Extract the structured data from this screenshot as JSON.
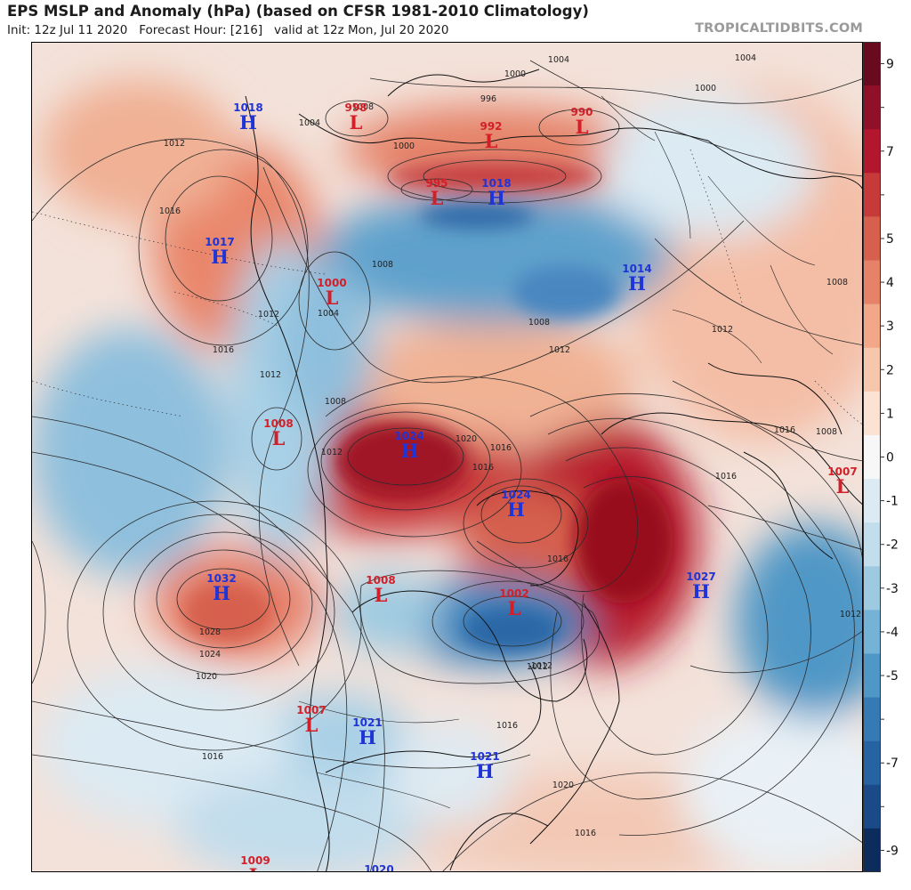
{
  "header": {
    "title": "EPS MSLP and Anomaly (hPa) (based on CFSR 1981-2010 Climatology)",
    "subtitle": "Init: 12z Jul 11 2020   Forecast Hour: [216]   valid at 12z Mon, Jul 20 2020",
    "brand": "TROPICALTIDBITS.COM"
  },
  "colors": {
    "high_label": "#1f34d6",
    "low_label": "#d21f28",
    "strong_positive": "#b2132b",
    "strong_negative": "#1f5f9e",
    "neutral": "#f7f7f7"
  },
  "colorbar": {
    "ticks": [
      "9",
      "8",
      "7",
      "6",
      "5",
      "4",
      "3",
      "2",
      "1",
      "0",
      "-1",
      "-2",
      "-3",
      "-4",
      "-5",
      "-6",
      "-7",
      "-8",
      "-9"
    ],
    "labeled": [
      "9",
      "7",
      "5",
      "4",
      "3",
      "2",
      "1",
      "0",
      "-1",
      "-2",
      "-3",
      "-4",
      "-5",
      "-7",
      "-9"
    ],
    "colors": [
      "#6a0a1f",
      "#8f1028",
      "#b2172d",
      "#c73a3a",
      "#d6604d",
      "#e58268",
      "#f1a788",
      "#f7c7ad",
      "#fbe2d3",
      "#f7f7f7",
      "#dceaf3",
      "#c2ddec",
      "#9ecae1",
      "#74b3d5",
      "#4f97c6",
      "#367ab5",
      "#2563a3",
      "#1a4a87",
      "#0d2c5e"
    ]
  },
  "pressure_centers": [
    {
      "type": "H",
      "value": "1018"
    },
    {
      "type": "L",
      "value": "998"
    },
    {
      "type": "L",
      "value": "992"
    },
    {
      "type": "L",
      "value": "990"
    },
    {
      "type": "L",
      "value": "995"
    },
    {
      "type": "H",
      "value": "1018"
    },
    {
      "type": "H",
      "value": "1017"
    },
    {
      "type": "L",
      "value": "1000"
    },
    {
      "type": "H",
      "value": "1014"
    },
    {
      "type": "L",
      "value": "1008"
    },
    {
      "type": "H",
      "value": "1024"
    },
    {
      "type": "H",
      "value": "1024"
    },
    {
      "type": "L",
      "value": "1007"
    },
    {
      "type": "H",
      "value": "1032"
    },
    {
      "type": "L",
      "value": "1008"
    },
    {
      "type": "L",
      "value": "1002"
    },
    {
      "type": "H",
      "value": "1027"
    },
    {
      "type": "L",
      "value": "1007"
    },
    {
      "type": "H",
      "value": "1021"
    },
    {
      "type": "H",
      "value": "1021"
    },
    {
      "type": "L",
      "value": "1009"
    },
    {
      "type": "H",
      "value": "1020"
    }
  ],
  "isobar_labels": [
    "1004",
    "1000",
    "996",
    "1008",
    "1000",
    "1012",
    "1004",
    "1016",
    "1012",
    "1004",
    "1008",
    "1008",
    "1012",
    "1016",
    "1012",
    "1008",
    "1012",
    "1016",
    "1020",
    "1016",
    "1028",
    "1024",
    "1020",
    "1016",
    "1012",
    "1016",
    "1008",
    "1016",
    "1012",
    "1016",
    "1020",
    "1016",
    "1004",
    "1000",
    "1008",
    "1012",
    "1016",
    "1012"
  ]
}
